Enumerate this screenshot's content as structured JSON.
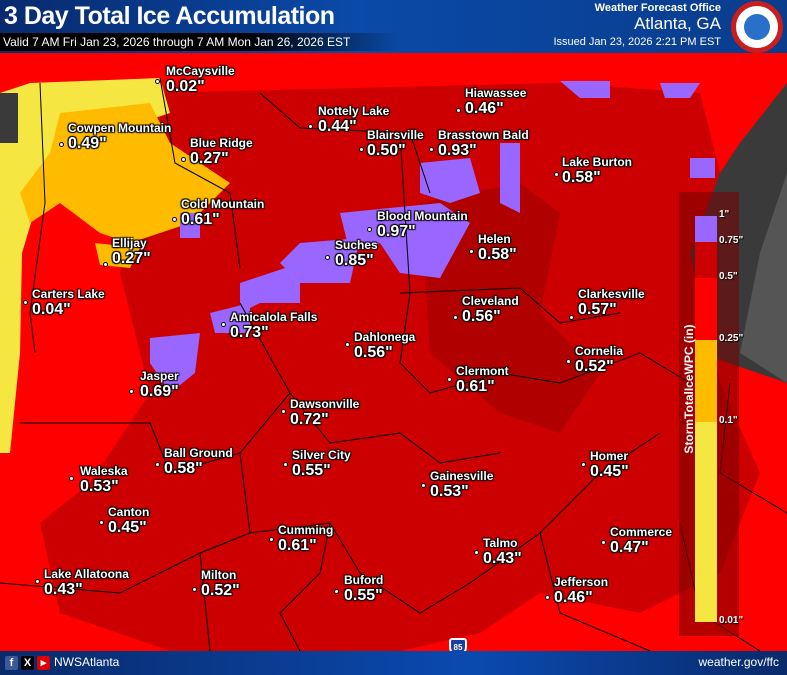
{
  "header": {
    "title": "3 Day Total Ice Accumulation",
    "valid": "Valid 7 AM Fri Jan 23, 2026 through 7 AM Mon Jan 26, 2026 EST",
    "office_line1": "Weather Forecast Office",
    "office_line2": "Atlanta, GA",
    "issued": "Issued Jan 23, 2026 2:21 PM EST",
    "logo_text": "National Weather Service"
  },
  "legend": {
    "title": "StormTotalIceWPC (in)",
    "ticks": [
      "1\"",
      "0.75\"",
      "0.5\"",
      "0.25\"",
      "0.1\"",
      "0.01\""
    ],
    "colors": {
      "0.75-1": "#9966ff",
      "0.5-0.75": "#cc0000",
      "0.25-0.5": "#ff0000",
      "0.1-0.25": "#ffbb00",
      "0.01-0.1": "#f5e642"
    }
  },
  "locations": [
    {
      "name": "McCaysville",
      "value": "0.02\""
    },
    {
      "name": "Cowpen Mountain",
      "value": "0.49\""
    },
    {
      "name": "Blue Ridge",
      "value": "0.27\""
    },
    {
      "name": "Nottely Lake",
      "value": "0.44\""
    },
    {
      "name": "Hiawassee",
      "value": "0.46\""
    },
    {
      "name": "Blairsville",
      "value": "0.50\""
    },
    {
      "name": "Brasstown Bald",
      "value": "0.93\""
    },
    {
      "name": "Lake Burton",
      "value": "0.58\""
    },
    {
      "name": "Cold Mountain",
      "value": "0.61\""
    },
    {
      "name": "Blood Mountain",
      "value": "0.97\""
    },
    {
      "name": "Suches",
      "value": "0.85\""
    },
    {
      "name": "Helen",
      "value": "0.58\""
    },
    {
      "name": "Ellijay",
      "value": "0.27\""
    },
    {
      "name": "Carters Lake",
      "value": "0.04\""
    },
    {
      "name": "Cleveland",
      "value": "0.56\""
    },
    {
      "name": "Clarkesville",
      "value": "0.57\""
    },
    {
      "name": "Amicalola Falls",
      "value": "0.73\""
    },
    {
      "name": "Dahlonega",
      "value": "0.56\""
    },
    {
      "name": "Cornelia",
      "value": "0.52\""
    },
    {
      "name": "Clermont",
      "value": "0.61\""
    },
    {
      "name": "Jasper",
      "value": "0.69\""
    },
    {
      "name": "Dawsonville",
      "value": "0.72\""
    },
    {
      "name": "Homer",
      "value": "0.45\""
    },
    {
      "name": "Waleska",
      "value": "0.53\""
    },
    {
      "name": "Ball Ground",
      "value": "0.58\""
    },
    {
      "name": "Silver City",
      "value": "0.55\""
    },
    {
      "name": "Gainesville",
      "value": "0.53\""
    },
    {
      "name": "Canton",
      "value": "0.45\""
    },
    {
      "name": "Commerce",
      "value": "0.47\""
    },
    {
      "name": "Cumming",
      "value": "0.61\""
    },
    {
      "name": "Talmo",
      "value": "0.43\""
    },
    {
      "name": "Lake Allatoona",
      "value": "0.43\""
    },
    {
      "name": "Milton",
      "value": "0.52\""
    },
    {
      "name": "Buford",
      "value": "0.55\""
    },
    {
      "name": "Jefferson",
      "value": "0.46\""
    }
  ],
  "interstate": "85",
  "footer": {
    "handle": "NWSAtlanta",
    "site": "weather.gov/ffc",
    "social": [
      "facebook-icon",
      "x-icon",
      "youtube-icon"
    ]
  }
}
